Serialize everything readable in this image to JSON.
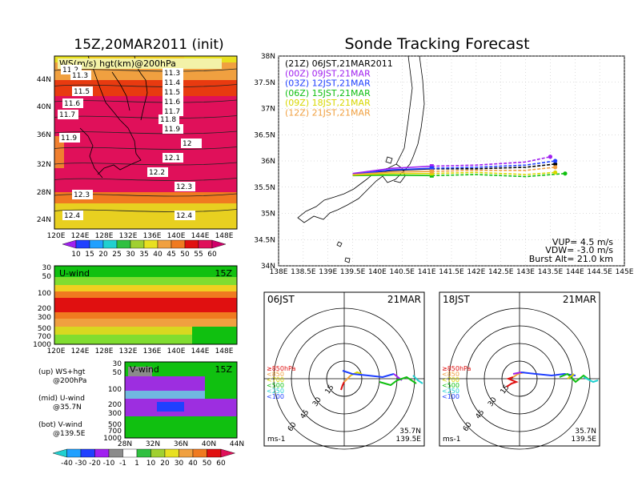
{
  "init_title": "15Z,20MAR2011 (init)",
  "main_title": "Sonde Tracking Forecast",
  "colors": {
    "purple": "#a020f0",
    "blue": "#2040ff",
    "green": "#10c010",
    "yellow": "#d8d800",
    "orange": "#f0a040",
    "red": "#e01010",
    "cyan": "#20d0d0",
    "black": "#000000"
  },
  "left_panels": {
    "ws_label": "WS(m/s) hgt(km)@200hPa",
    "uwind_label": "U-wind",
    "uwind_time": "15Z",
    "vwind_label": "V-wind",
    "vwind_time": "15Z",
    "lat_ticks": [
      "44N",
      "40N",
      "36N",
      "32N",
      "28N",
      "24N"
    ],
    "lon_ticks": [
      "120E",
      "124E",
      "128E",
      "132E",
      "136E",
      "140E",
      "144E",
      "148E"
    ],
    "ws_colorbar": [
      "10",
      "15",
      "20",
      "25",
      "30",
      "35",
      "40",
      "45",
      "50",
      "55",
      "60"
    ],
    "hgt_contour_labels": [
      "11.2",
      "11.3",
      "11.3",
      "11.4",
      "11.5",
      "11.5",
      "11.6",
      "11.6",
      "11.7",
      "11.7",
      "11.8",
      "11.9",
      "11.9",
      "12",
      "12.1",
      "12.2",
      "12.3",
      "12.3",
      "12.4",
      "12.4"
    ],
    "pres_ticks": [
      "30",
      "50",
      "100",
      "200",
      "300",
      "500",
      "700",
      "1000"
    ],
    "vwind_lat_ticks": [
      "28N",
      "32N",
      "36N",
      "40N",
      "44N"
    ],
    "v_colorbar": [
      "-40",
      "-30",
      "-20",
      "-10",
      "-1",
      "1",
      "10",
      "20",
      "30",
      "40",
      "50",
      "60"
    ],
    "legend_lines": [
      "(up) WS+hgt",
      "@200hPa",
      "(mid) U-wind",
      "@35.7N",
      "(bot) V-wind",
      "@139.5E"
    ]
  },
  "chart_data": [
    {
      "type": "line",
      "title": "Sonde Tracking Forecast",
      "xlim": [
        138,
        145
      ],
      "ylim": [
        34,
        38
      ],
      "x_ticks": [
        "138E",
        "138.5E",
        "139E",
        "139.5E",
        "140E",
        "140.5E",
        "141E",
        "141.5E",
        "142E",
        "142.5E",
        "143E",
        "143.5E",
        "144E",
        "144.5E",
        "145E"
      ],
      "y_ticks": [
        "38N",
        "37.5N",
        "37N",
        "36.5N",
        "36N",
        "35.5N",
        "35N",
        "34.5N",
        "34N"
      ],
      "series": [
        {
          "name": "(21Z) 06JST,21MAR2011",
          "color": "#000000",
          "x": [
            139.5,
            140.3,
            141.1,
            142.0,
            143.0,
            143.6
          ],
          "y": [
            35.74,
            35.82,
            35.85,
            35.85,
            35.88,
            35.94
          ]
        },
        {
          "name": "(00Z) 09JST,21MAR",
          "color": "#a020f0",
          "x": [
            139.5,
            140.3,
            141.1,
            142.0,
            143.0,
            143.5
          ],
          "y": [
            35.76,
            35.86,
            35.9,
            35.92,
            35.98,
            36.08
          ]
        },
        {
          "name": "(03Z) 12JST,21MAR",
          "color": "#2040ff",
          "x": [
            139.5,
            140.3,
            141.1,
            142.0,
            143.0,
            143.6
          ],
          "y": [
            35.74,
            35.83,
            35.86,
            35.88,
            35.92,
            36.0
          ]
        },
        {
          "name": "(06Z) 15JST,21MAR",
          "color": "#10c010",
          "x": [
            139.5,
            140.3,
            141.1,
            142.0,
            143.0,
            143.8
          ],
          "y": [
            35.72,
            35.73,
            35.72,
            35.74,
            35.7,
            35.76
          ]
        },
        {
          "name": "(09Z) 18JST,21MAR",
          "color": "#d8d800",
          "x": [
            139.5,
            140.3,
            141.1,
            142.0,
            143.0,
            143.6
          ],
          "y": [
            35.73,
            35.76,
            35.76,
            35.78,
            35.74,
            35.78
          ]
        },
        {
          "name": "(12Z) 21JST,21MAR",
          "color": "#f0a040",
          "x": [
            139.5,
            140.3,
            141.1,
            142.0,
            143.0,
            143.6
          ],
          "y": [
            35.74,
            35.79,
            35.8,
            35.82,
            35.82,
            35.88
          ]
        }
      ],
      "info_lines": [
        "VUP= 4.5 m/s",
        "VDW= -3.0 m/s",
        "Burst Alt= 21.0 km"
      ]
    },
    {
      "type": "scatter",
      "title": "06JST",
      "date_label": "21MAR",
      "ring_labels": [
        "15",
        "30",
        "45",
        "60"
      ],
      "level_labels": [
        "≥850hPa",
        "<850",
        "<700",
        "<500",
        "<250",
        "<100"
      ],
      "units": "ms-1",
      "location": [
        "35.7N",
        "139.5E"
      ]
    },
    {
      "type": "scatter",
      "title": "18JST",
      "date_label": "21MAR",
      "ring_labels": [
        "15",
        "30",
        "45",
        "60"
      ],
      "level_labels": [
        "≥850hPa",
        "<850",
        "<700",
        "<500",
        "<250",
        "<100"
      ],
      "units": "ms-1",
      "location": [
        "35.7N",
        "139.5E"
      ]
    }
  ]
}
